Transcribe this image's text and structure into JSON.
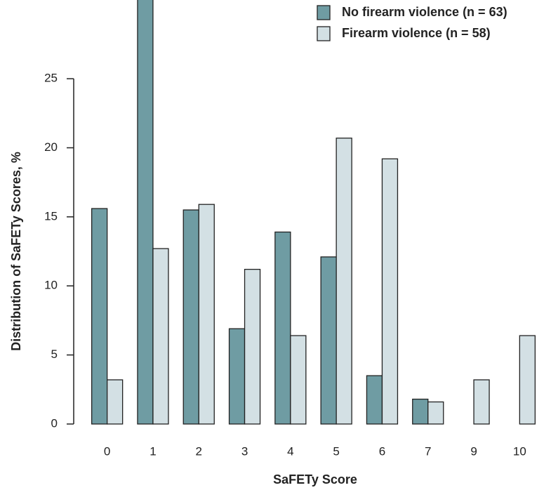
{
  "chart_data": {
    "type": "bar",
    "x_label": "SaFETy Score",
    "y_label": "Distribution of SaFETy Scores, %",
    "categories": [
      "0",
      "1",
      "2",
      "3",
      "4",
      "5",
      "6",
      "7",
      "9",
      "10"
    ],
    "series": [
      {
        "name": "No firearm violence (n = 63)",
        "color": "#6f9ca3",
        "values": [
          15.6,
          31.7,
          15.5,
          6.9,
          13.9,
          12.1,
          3.5,
          1.8,
          0,
          0
        ]
      },
      {
        "name": "Firearm violence (n = 58)",
        "color": "#d3e0e4",
        "values": [
          3.2,
          12.7,
          15.9,
          11.2,
          6.4,
          20.7,
          19.2,
          1.6,
          3.2,
          6.4
        ]
      }
    ],
    "ylim": [
      0,
      30.7
    ],
    "yticks": [
      0,
      5,
      10,
      15,
      20,
      25
    ],
    "legend": "upper right"
  }
}
